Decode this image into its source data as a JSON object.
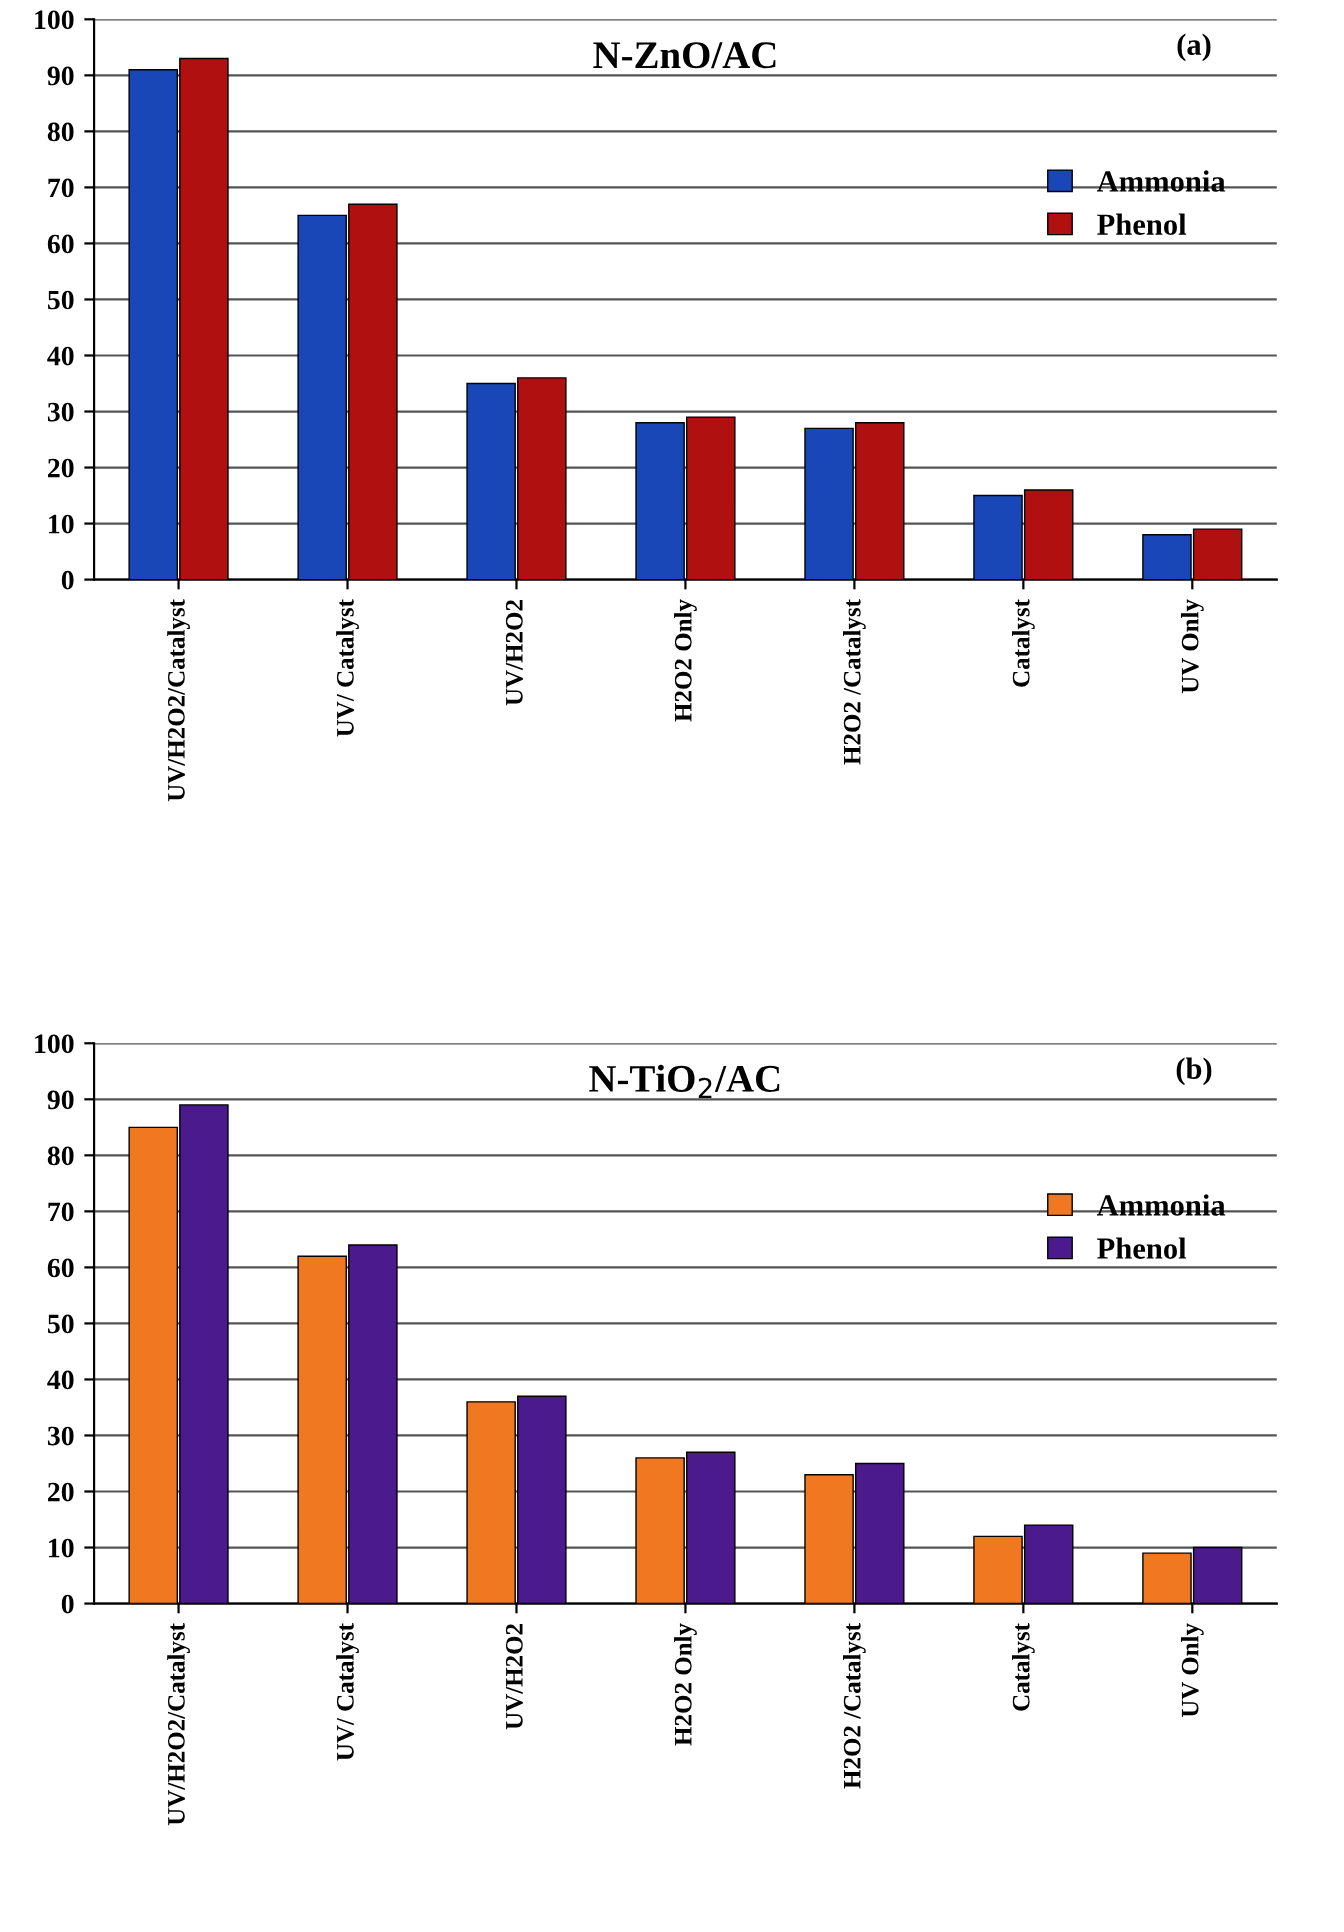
{
  "chart_data": [
    {
      "type": "bar",
      "title": "N-ZnO/AC",
      "annotations": [
        "(a)"
      ],
      "categories": [
        "UV/H2O2/Catalyst",
        "UV/ Catalyst",
        "UV/H2O2",
        "H2O2 Only",
        "H2O2 /Catalyst",
        "Catalyst",
        "UV Only"
      ],
      "series": [
        {
          "name": "Ammonia",
          "color": "#1a47b8",
          "values": [
            91,
            65,
            35,
            28,
            27,
            15,
            8
          ]
        },
        {
          "name": "Phenol",
          "color": "#b01010",
          "values": [
            93,
            67,
            36,
            29,
            28,
            16,
            9
          ]
        }
      ],
      "ylim": [
        0,
        100
      ],
      "yticks": [
        0,
        10,
        20,
        30,
        40,
        50,
        60,
        70,
        80,
        90,
        100
      ],
      "grid": "y",
      "legend": "top right"
    },
    {
      "type": "bar",
      "title": "N-TiO$_{2}$/AC",
      "annotations": [
        "(b)"
      ],
      "categories": [
        "UV/H2O2/Catalyst",
        "UV/ Catalyst",
        "UV/H2O2",
        "H2O2 Only",
        "H2O2 /Catalyst",
        "Catalyst",
        "UV Only"
      ],
      "series": [
        {
          "name": "Ammonia",
          "color": "#f07820",
          "values": [
            85,
            62,
            36,
            26,
            23,
            12,
            9
          ]
        },
        {
          "name": "Phenol",
          "color": "#4b1a8c",
          "values": [
            89,
            64,
            37,
            27,
            25,
            14,
            10
          ]
        }
      ],
      "ylim": [
        0,
        100
      ],
      "yticks": [
        0,
        10,
        20,
        30,
        40,
        50,
        60,
        70,
        80,
        90,
        100
      ],
      "grid": "y",
      "legend": "top right"
    }
  ]
}
